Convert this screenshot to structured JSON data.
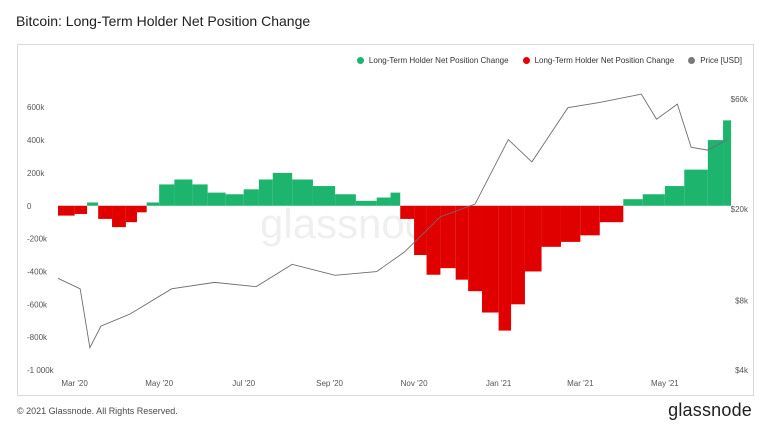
{
  "header": {
    "title": "Bitcoin: Long-Term Holder Net Position Change"
  },
  "legend": {
    "items": [
      {
        "label": "Long-Term Holder Net Position Change",
        "color": "#1db46e"
      },
      {
        "label": "Long-Term Holder Net Position Change",
        "color": "#e00000"
      },
      {
        "label": "Price [USD]",
        "color": "#7a7a7a"
      }
    ]
  },
  "footer": {
    "copyright": "© 2021 Glassnode. All Rights Reserved.",
    "brand": "glassnode"
  },
  "chart_data": {
    "type": "bar",
    "title": "Bitcoin: Long-Term Holder Net Position Change",
    "colors": {
      "positive": "#1db46e",
      "negative": "#e00000",
      "price": "#7a7a7a"
    },
    "x_tick_labels": [
      "Mar '20",
      "May '20",
      "Jul '20",
      "Sep '20",
      "Nov '20",
      "Jan '21",
      "Mar '21",
      "May '21"
    ],
    "x_range": [
      "2020-02-18",
      "2021-06-17"
    ],
    "y_left": {
      "ticks": [
        600000,
        400000,
        200000,
        0,
        -200000,
        -400000,
        -600000,
        -800000,
        -1000000
      ],
      "tick_labels": [
        "600k",
        "400k",
        "200k",
        "0",
        "-200k",
        "-400k",
        "-600k",
        "-800k",
        "-1 000k"
      ],
      "range": [
        -1000000,
        650000
      ]
    },
    "y_right": {
      "scale": "log",
      "ticks": [
        60000,
        20000,
        8000,
        4000
      ],
      "tick_labels": [
        "$60k",
        "$20k",
        "$8k",
        "$4k"
      ],
      "range": [
        4000,
        60000
      ]
    },
    "grid": false,
    "legend_position": "top-right",
    "net_position_change": [
      {
        "date": "2020-02-18",
        "value": -60000
      },
      {
        "date": "2020-03-01",
        "value": -50000
      },
      {
        "date": "2020-03-10",
        "value": 20000
      },
      {
        "date": "2020-03-18",
        "value": -80000
      },
      {
        "date": "2020-03-28",
        "value": -130000
      },
      {
        "date": "2020-04-07",
        "value": -100000
      },
      {
        "date": "2020-04-15",
        "value": -40000
      },
      {
        "date": "2020-04-22",
        "value": 20000
      },
      {
        "date": "2020-05-01",
        "value": 130000
      },
      {
        "date": "2020-05-12",
        "value": 160000
      },
      {
        "date": "2020-05-25",
        "value": 130000
      },
      {
        "date": "2020-06-05",
        "value": 80000
      },
      {
        "date": "2020-06-18",
        "value": 70000
      },
      {
        "date": "2020-07-01",
        "value": 100000
      },
      {
        "date": "2020-07-12",
        "value": 160000
      },
      {
        "date": "2020-07-22",
        "value": 200000
      },
      {
        "date": "2020-08-05",
        "value": 160000
      },
      {
        "date": "2020-08-20",
        "value": 120000
      },
      {
        "date": "2020-09-05",
        "value": 70000
      },
      {
        "date": "2020-09-20",
        "value": 30000
      },
      {
        "date": "2020-10-05",
        "value": 50000
      },
      {
        "date": "2020-10-15",
        "value": 80000
      },
      {
        "date": "2020-10-22",
        "value": -80000
      },
      {
        "date": "2020-11-01",
        "value": -300000
      },
      {
        "date": "2020-11-10",
        "value": -420000
      },
      {
        "date": "2020-11-20",
        "value": -380000
      },
      {
        "date": "2020-12-01",
        "value": -450000
      },
      {
        "date": "2020-12-10",
        "value": -520000
      },
      {
        "date": "2020-12-20",
        "value": -650000
      },
      {
        "date": "2021-01-01",
        "value": -760000
      },
      {
        "date": "2021-01-10",
        "value": -600000
      },
      {
        "date": "2021-01-20",
        "value": -400000
      },
      {
        "date": "2021-02-01",
        "value": -250000
      },
      {
        "date": "2021-02-15",
        "value": -220000
      },
      {
        "date": "2021-03-01",
        "value": -180000
      },
      {
        "date": "2021-03-15",
        "value": -100000
      },
      {
        "date": "2021-04-01",
        "value": 40000
      },
      {
        "date": "2021-04-15",
        "value": 70000
      },
      {
        "date": "2021-05-01",
        "value": 120000
      },
      {
        "date": "2021-05-15",
        "value": 220000
      },
      {
        "date": "2021-06-01",
        "value": 400000
      },
      {
        "date": "2021-06-12",
        "value": 520000
      }
    ],
    "price_usd": [
      {
        "date": "2020-02-18",
        "value": 10000
      },
      {
        "date": "2020-03-05",
        "value": 9000
      },
      {
        "date": "2020-03-12",
        "value": 5000
      },
      {
        "date": "2020-03-20",
        "value": 6200
      },
      {
        "date": "2020-04-10",
        "value": 7000
      },
      {
        "date": "2020-05-10",
        "value": 9000
      },
      {
        "date": "2020-06-10",
        "value": 9600
      },
      {
        "date": "2020-07-10",
        "value": 9200
      },
      {
        "date": "2020-08-05",
        "value": 11500
      },
      {
        "date": "2020-09-05",
        "value": 10300
      },
      {
        "date": "2020-10-05",
        "value": 10700
      },
      {
        "date": "2020-10-25",
        "value": 13000
      },
      {
        "date": "2020-11-20",
        "value": 18500
      },
      {
        "date": "2020-12-15",
        "value": 21000
      },
      {
        "date": "2021-01-08",
        "value": 40000
      },
      {
        "date": "2021-01-25",
        "value": 32000
      },
      {
        "date": "2021-02-20",
        "value": 55000
      },
      {
        "date": "2021-03-15",
        "value": 58000
      },
      {
        "date": "2021-04-14",
        "value": 63000
      },
      {
        "date": "2021-04-25",
        "value": 49000
      },
      {
        "date": "2021-05-10",
        "value": 57000
      },
      {
        "date": "2021-05-20",
        "value": 37000
      },
      {
        "date": "2021-06-01",
        "value": 36000
      },
      {
        "date": "2021-06-15",
        "value": 40000
      }
    ]
  }
}
